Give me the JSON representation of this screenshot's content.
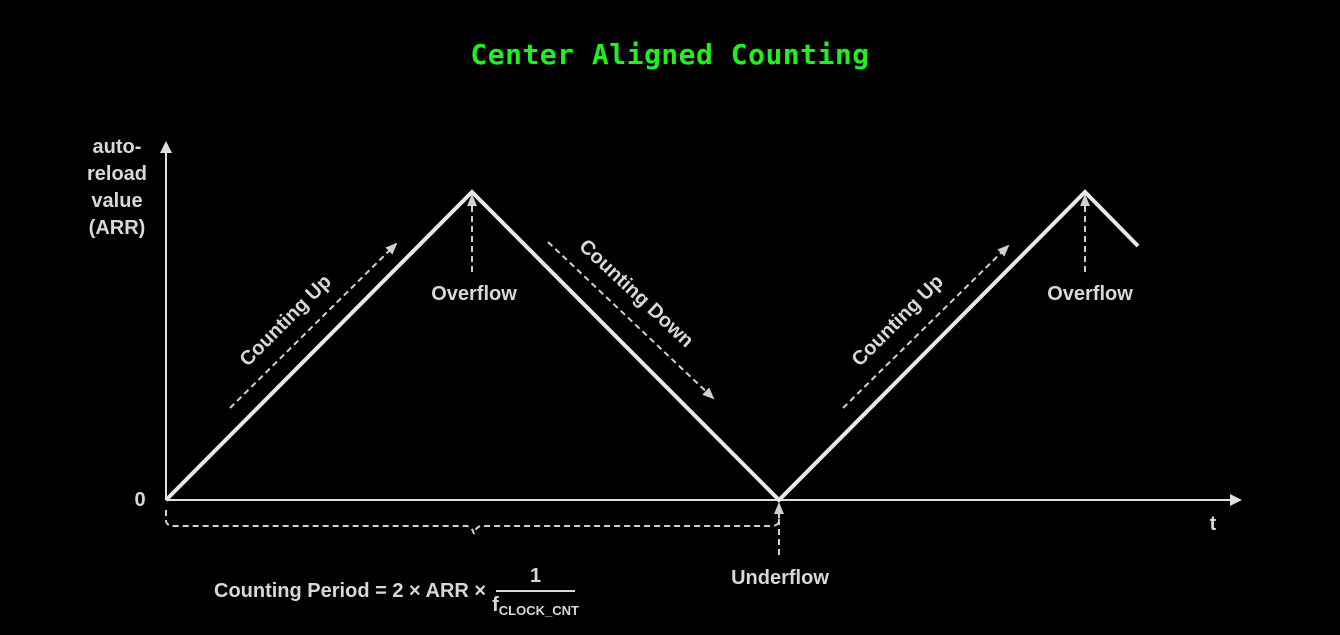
{
  "title": "Center Aligned Counting",
  "y_axis_label": [
    "auto-",
    "reload",
    "value",
    "(ARR)"
  ],
  "y_origin_label": "0",
  "x_axis_label": "t",
  "labels": {
    "counting_up_1": "Counting Up",
    "counting_down": "Counting Down",
    "counting_up_2": "Counting Up",
    "overflow_1": "Overflow",
    "overflow_2": "Overflow",
    "underflow": "Underflow"
  },
  "formula": {
    "prefix": "Counting Period = 2 × ARR ×",
    "numerator": "1",
    "denominator_main": "f",
    "denominator_sub": "CLOCK_CNT"
  },
  "colors": {
    "background": "#000000",
    "title": "#1ff01f",
    "lines": "#e0e0e0"
  }
}
